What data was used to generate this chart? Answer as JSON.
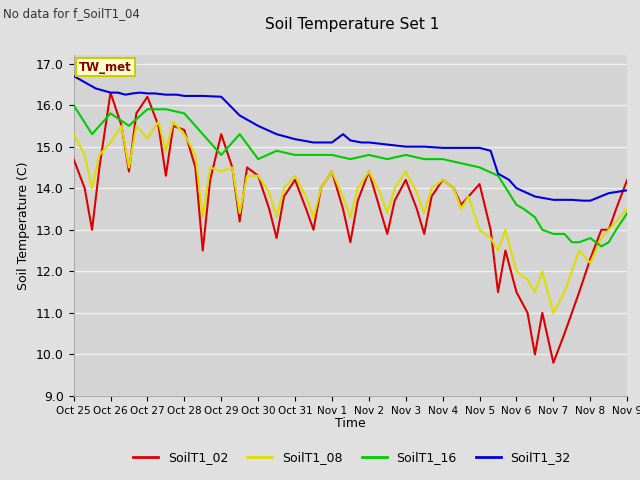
{
  "title": "Soil Temperature Set 1",
  "subtitle": "No data for f_SoilT1_04",
  "xlabel": "Time",
  "ylabel": "Soil Temperature (C)",
  "ylim": [
    9.0,
    17.2
  ],
  "yticks": [
    9.0,
    10.0,
    11.0,
    12.0,
    13.0,
    14.0,
    15.0,
    16.0,
    17.0
  ],
  "xtick_labels": [
    "Oct 25",
    "Oct 26",
    "Oct 27",
    "Oct 28",
    "Oct 29",
    "Oct 30",
    "Oct 31",
    "Nov 1",
    "Nov 2",
    "Nov 3",
    "Nov 4",
    "Nov 5",
    "Nov 6",
    "Nov 7",
    "Nov 8",
    "Nov 9"
  ],
  "bg_color": "#e0e0e0",
  "plot_bg_color": "#d4d4d4",
  "grid_color": "#f0f0f0",
  "line_colors": {
    "SoilT1_02": "#dd0000",
    "SoilT1_08": "#dddd00",
    "SoilT1_16": "#00cc00",
    "SoilT1_32": "#0000dd"
  },
  "tw_met_label": "TW_met",
  "tw_met_color": "#880000",
  "tw_met_bg": "#ffffcc",
  "tw_met_border": "#cccc00",
  "SoilT1_02_x": [
    0.0,
    0.3,
    0.5,
    0.7,
    1.0,
    1.3,
    1.5,
    1.7,
    2.0,
    2.3,
    2.5,
    2.7,
    3.0,
    3.3,
    3.5,
    3.7,
    4.0,
    4.3,
    4.5,
    4.7,
    5.0,
    5.3,
    5.5,
    5.7,
    6.0,
    6.3,
    6.5,
    6.7,
    7.0,
    7.3,
    7.5,
    7.7,
    8.0,
    8.3,
    8.5,
    8.7,
    9.0,
    9.3,
    9.5,
    9.7,
    10.0,
    10.3,
    10.5,
    10.7,
    11.0,
    11.3,
    11.5,
    11.7,
    12.0,
    12.3,
    12.5,
    12.7,
    13.0,
    13.3,
    13.5,
    13.7,
    14.0,
    14.3,
    14.5,
    14.7,
    15.0
  ],
  "SoilT1_02_y": [
    14.7,
    14.0,
    13.0,
    14.5,
    16.3,
    15.5,
    14.4,
    15.8,
    16.2,
    15.5,
    14.3,
    15.5,
    15.4,
    14.5,
    12.5,
    14.2,
    15.3,
    14.5,
    13.2,
    14.5,
    14.3,
    13.5,
    12.8,
    13.8,
    14.2,
    13.5,
    13.0,
    14.0,
    14.4,
    13.5,
    12.7,
    13.7,
    14.4,
    13.5,
    12.9,
    13.7,
    14.2,
    13.5,
    12.9,
    13.8,
    14.2,
    14.0,
    13.6,
    13.8,
    14.1,
    13.0,
    11.5,
    12.5,
    11.5,
    11.0,
    10.0,
    11.0,
    9.8,
    10.5,
    11.0,
    11.5,
    12.3,
    13.0,
    13.0,
    13.5,
    14.2
  ],
  "SoilT1_08_x": [
    0.0,
    0.3,
    0.5,
    0.7,
    1.0,
    1.3,
    1.5,
    1.7,
    2.0,
    2.3,
    2.5,
    2.7,
    3.0,
    3.3,
    3.5,
    3.7,
    4.0,
    4.3,
    4.5,
    4.7,
    5.0,
    5.3,
    5.5,
    5.7,
    6.0,
    6.3,
    6.5,
    6.7,
    7.0,
    7.3,
    7.5,
    7.7,
    8.0,
    8.3,
    8.5,
    8.7,
    9.0,
    9.3,
    9.5,
    9.7,
    10.0,
    10.3,
    10.5,
    10.7,
    11.0,
    11.3,
    11.5,
    11.7,
    12.0,
    12.3,
    12.5,
    12.7,
    13.0,
    13.3,
    13.5,
    13.7,
    14.0,
    14.3,
    14.5,
    14.7,
    15.0
  ],
  "SoilT1_08_y": [
    15.3,
    14.8,
    14.0,
    14.8,
    15.1,
    15.5,
    14.5,
    15.5,
    15.2,
    15.6,
    14.9,
    15.6,
    15.3,
    14.8,
    13.3,
    14.5,
    14.4,
    14.5,
    13.4,
    14.3,
    14.3,
    13.9,
    13.3,
    14.0,
    14.3,
    13.8,
    13.3,
    14.0,
    14.4,
    13.8,
    13.3,
    14.0,
    14.4,
    13.9,
    13.4,
    14.0,
    14.4,
    13.9,
    13.4,
    14.0,
    14.2,
    14.0,
    13.5,
    13.8,
    13.0,
    12.8,
    12.5,
    13.0,
    12.0,
    11.8,
    11.5,
    12.0,
    11.0,
    11.5,
    12.0,
    12.5,
    12.2,
    12.8,
    13.0,
    13.2,
    13.5
  ],
  "SoilT1_16_x": [
    0.0,
    0.5,
    1.0,
    1.5,
    2.0,
    2.5,
    3.0,
    3.5,
    4.0,
    4.5,
    5.0,
    5.5,
    6.0,
    6.5,
    7.0,
    7.5,
    8.0,
    8.5,
    9.0,
    9.5,
    10.0,
    10.5,
    11.0,
    11.5,
    12.0,
    12.2,
    12.5,
    12.7,
    13.0,
    13.3,
    13.5,
    13.7,
    14.0,
    14.3,
    14.5,
    14.7,
    15.0
  ],
  "SoilT1_16_y": [
    16.0,
    15.3,
    15.8,
    15.5,
    15.9,
    15.9,
    15.8,
    15.3,
    14.8,
    15.3,
    14.7,
    14.9,
    14.8,
    14.8,
    14.8,
    14.7,
    14.8,
    14.7,
    14.8,
    14.7,
    14.7,
    14.6,
    14.5,
    14.3,
    13.6,
    13.5,
    13.3,
    13.0,
    12.9,
    12.9,
    12.7,
    12.7,
    12.8,
    12.6,
    12.7,
    13.0,
    13.4
  ],
  "SoilT1_32_x": [
    0.0,
    0.2,
    0.4,
    0.6,
    0.8,
    1.0,
    1.2,
    1.4,
    1.6,
    1.8,
    2.0,
    2.2,
    2.5,
    2.8,
    3.0,
    3.5,
    4.0,
    4.5,
    5.0,
    5.5,
    6.0,
    6.5,
    7.0,
    7.3,
    7.5,
    7.8,
    8.0,
    8.5,
    9.0,
    9.5,
    10.0,
    10.5,
    11.0,
    11.3,
    11.5,
    11.8,
    12.0,
    12.5,
    13.0,
    13.3,
    13.5,
    13.8,
    14.0,
    14.5,
    15.0
  ],
  "SoilT1_32_y": [
    16.7,
    16.6,
    16.5,
    16.4,
    16.35,
    16.3,
    16.3,
    16.25,
    16.28,
    16.3,
    16.28,
    16.28,
    16.25,
    16.25,
    16.22,
    16.22,
    16.2,
    15.75,
    15.5,
    15.3,
    15.18,
    15.1,
    15.1,
    15.3,
    15.15,
    15.1,
    15.1,
    15.05,
    15.0,
    15.0,
    14.97,
    14.97,
    14.97,
    14.9,
    14.35,
    14.2,
    14.0,
    13.8,
    13.72,
    13.72,
    13.72,
    13.7,
    13.7,
    13.88,
    13.95
  ]
}
